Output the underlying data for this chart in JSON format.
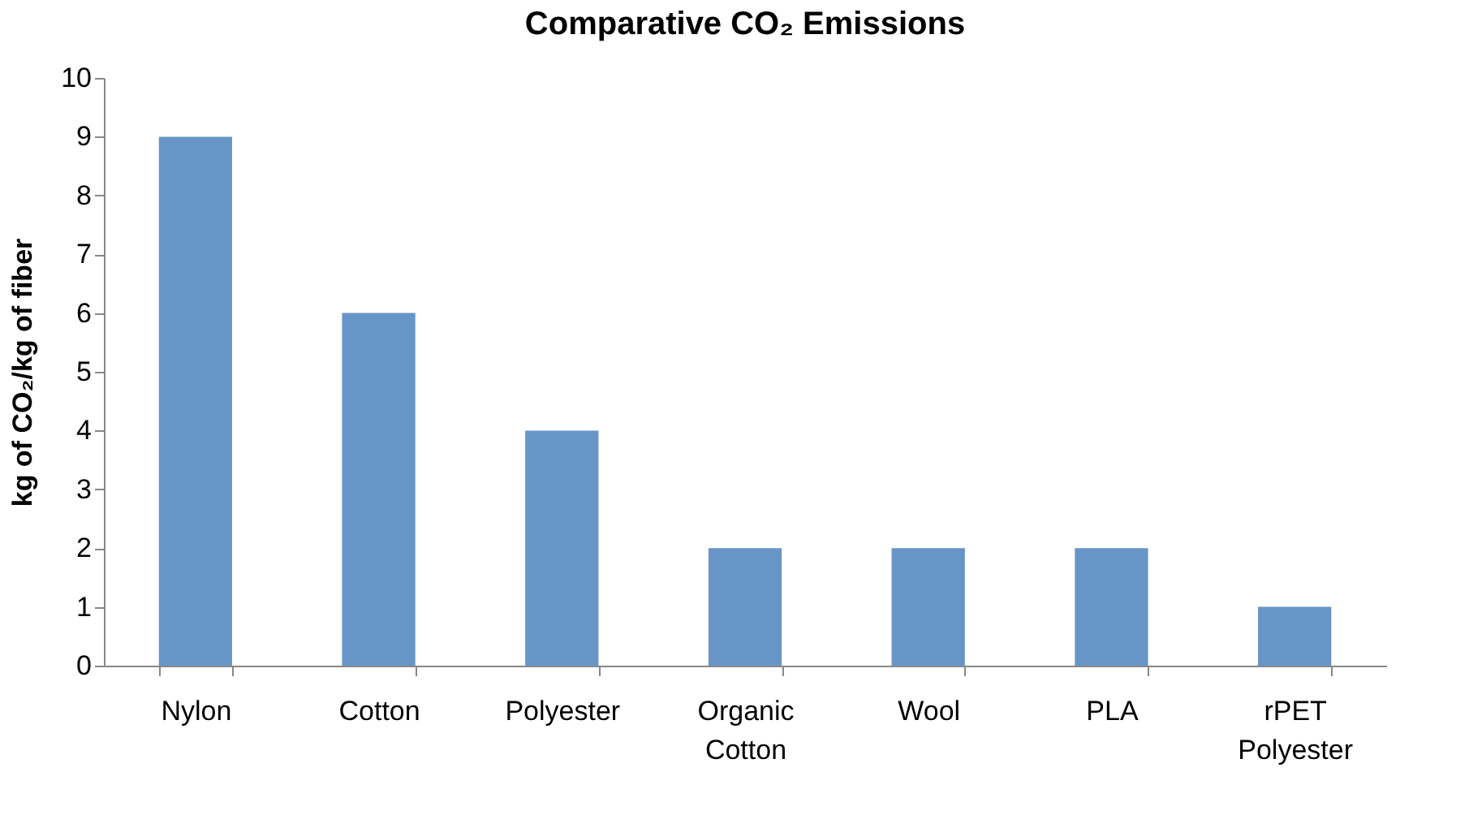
{
  "chart_data": {
    "type": "bar",
    "title": "Comparative CO₂ Emissions",
    "ylabel": "kg of CO₂/kg of fiber",
    "categories": [
      "Nylon",
      "Cotton",
      "Polyester",
      "Organic Cotton",
      "Wool",
      "PLA",
      "rPET Polyester"
    ],
    "values": [
      9,
      6,
      4,
      2,
      2,
      2,
      1
    ],
    "color": "#6895c8",
    "ylim": [
      0,
      10
    ],
    "yticks": [
      0,
      1,
      2,
      3,
      4,
      5,
      6,
      7,
      8,
      9,
      10
    ],
    "grid": false
  }
}
